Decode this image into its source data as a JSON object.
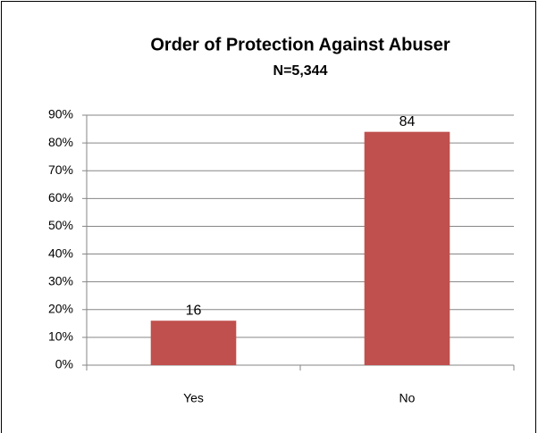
{
  "chart_data": {
    "type": "bar",
    "title": "Order of Protection Against Abuser",
    "subtitle": "N=5,344",
    "categories": [
      "Yes",
      "No"
    ],
    "values": [
      16,
      84
    ],
    "color": "#c0504d",
    "ylim": [
      0,
      90
    ],
    "yticks": [
      {
        "value": 0,
        "label": "0%"
      },
      {
        "value": 10,
        "label": "10%"
      },
      {
        "value": 20,
        "label": "20%"
      },
      {
        "value": 30,
        "label": "30%"
      },
      {
        "value": 40,
        "label": "40%"
      },
      {
        "value": 50,
        "label": "50%"
      },
      {
        "value": 60,
        "label": "60%"
      },
      {
        "value": 70,
        "label": "70%"
      },
      {
        "value": 80,
        "label": "80%"
      },
      {
        "value": 90,
        "label": "90%"
      }
    ],
    "grid": true
  }
}
